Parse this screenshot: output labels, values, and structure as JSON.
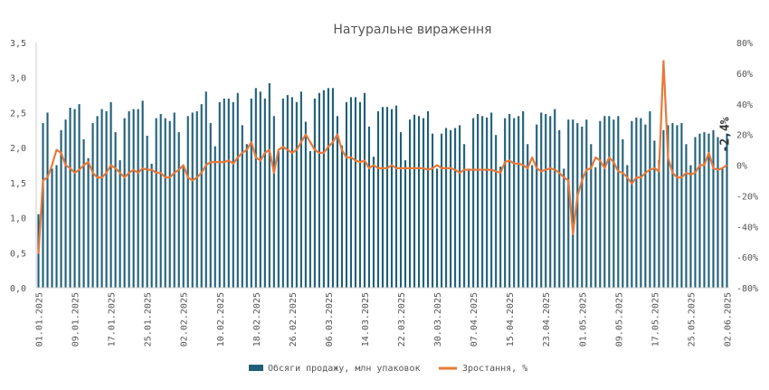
{
  "chart_data": {
    "type": "bar",
    "title": "Натуральне  вираження",
    "y_left": {
      "lim": [
        0,
        3.5
      ],
      "ticks": [
        0.0,
        0.5,
        1.0,
        1.5,
        2.0,
        2.5,
        3.0,
        3.5
      ],
      "tick_labels": [
        "0,0",
        "0,5",
        "1,0",
        "1,5",
        "2,0",
        "2,5",
        "3,0",
        "3,5"
      ]
    },
    "y_right": {
      "lim": [
        -80,
        80
      ],
      "ticks": [
        -80,
        -60,
        -40,
        -20,
        0,
        20,
        40,
        60,
        80
      ],
      "tick_labels": [
        "-80%",
        "-60%",
        "-40%",
        "-20%",
        "0%",
        "20%",
        "40%",
        "60%",
        "80%"
      ]
    },
    "x_tick_labels": [
      "01.01.2025",
      "09.01.2025",
      "17.01.2025",
      "25.01.2025",
      "02.02.2025",
      "10.02.2025",
      "18.02.2025",
      "26.02.2025",
      "06.03.2025",
      "14.03.2025",
      "22.03.2025",
      "30.03.2025",
      "07.04.2025",
      "15.04.2025",
      "23.04.2025",
      "01.05.2025",
      "09.05.2025",
      "17.05.2025",
      "25.05.2025",
      "02.06.2025"
    ],
    "grid": false,
    "legend_position": "bottom",
    "colors": {
      "bars": "#1f5f7a",
      "line": "#e8793a",
      "axis": "#cccccc",
      "text": "#555555"
    },
    "series": [
      {
        "name": "Обсяги продажу, млн упаковок",
        "axis": "left",
        "kind": "bar",
        "values": [
          1.05,
          2.35,
          2.5,
          1.7,
          1.75,
          2.25,
          2.4,
          2.57,
          2.55,
          2.62,
          2.12,
          1.85,
          2.35,
          2.45,
          2.55,
          2.52,
          2.65,
          2.22,
          1.82,
          2.42,
          2.52,
          2.55,
          2.55,
          2.67,
          2.17,
          1.77,
          2.42,
          2.48,
          2.42,
          2.38,
          2.5,
          2.22,
          1.75,
          2.45,
          2.5,
          2.52,
          2.62,
          2.8,
          2.35,
          2.02,
          2.65,
          2.7,
          2.7,
          2.65,
          2.78,
          2.32,
          2.05,
          2.7,
          2.85,
          2.8,
          2.7,
          2.92,
          2.45,
          1.95,
          2.7,
          2.75,
          2.72,
          2.65,
          2.8,
          2.37,
          1.95,
          2.7,
          2.78,
          2.82,
          2.85,
          2.85,
          2.45,
          2.03,
          2.65,
          2.72,
          2.72,
          2.65,
          2.78,
          2.3,
          1.87,
          2.52,
          2.58,
          2.58,
          2.55,
          2.6,
          2.22,
          1.82,
          2.4,
          2.47,
          2.45,
          2.42,
          2.52,
          2.2,
          1.7,
          2.2,
          2.28,
          2.25,
          2.28,
          2.32,
          2.05,
          1.7,
          2.42,
          2.48,
          2.45,
          2.43,
          2.5,
          2.18,
          1.73,
          2.42,
          2.48,
          2.42,
          2.45,
          2.52,
          2.05,
          1.75,
          2.33,
          2.5,
          2.48,
          2.45,
          2.55,
          2.25,
          1.7,
          2.4,
          2.4,
          2.35,
          2.3,
          2.4,
          2.05,
          1.72,
          2.38,
          2.45,
          2.45,
          2.4,
          2.45,
          2.12,
          1.75,
          2.38,
          2.43,
          2.42,
          2.33,
          2.52,
          2.1,
          1.82,
          2.25,
          2.32,
          2.35,
          2.32,
          2.35,
          2.05,
          1.75,
          2.15,
          2.2,
          2.22,
          2.2,
          2.25,
          2.15,
          1.72,
          2.2
        ]
      },
      {
        "name": "Зростання, %",
        "axis": "right",
        "kind": "line",
        "values": [
          -58,
          -10,
          -8,
          0,
          10,
          8,
          0,
          -2,
          -5,
          -3,
          0,
          2,
          -5,
          -8,
          -8,
          -5,
          0,
          -2,
          -5,
          -8,
          -5,
          -3,
          -5,
          -2,
          -3,
          -3,
          -5,
          -5,
          -8,
          -8,
          -5,
          -3,
          0,
          -8,
          -10,
          -8,
          -5,
          0,
          2,
          2,
          2,
          2,
          3,
          1,
          5,
          8,
          10,
          15,
          5,
          3,
          8,
          10,
          -5,
          10,
          12,
          10,
          8,
          10,
          15,
          20,
          15,
          10,
          8,
          8,
          12,
          15,
          20,
          10,
          5,
          5,
          3,
          2,
          3,
          -2,
          0,
          -2,
          -2,
          -2,
          0,
          -2,
          -2,
          -2,
          -2,
          -2,
          -2,
          -2,
          -3,
          -2,
          0,
          -2,
          -2,
          -2,
          -3,
          -5,
          -3,
          -3,
          -3,
          -3,
          -3,
          -3,
          -3,
          -4,
          -5,
          2,
          3,
          1,
          1,
          0,
          -2,
          5,
          -2,
          -4,
          -3,
          -2,
          -3,
          -5,
          -8,
          -10,
          -45,
          -20,
          -10,
          -3,
          -2,
          5,
          3,
          -2,
          5,
          2,
          -4,
          -5,
          -8,
          -12,
          -8,
          -8,
          -5,
          -3,
          -2,
          -4,
          68,
          5,
          -5,
          -8,
          -8,
          -5,
          -6,
          -5,
          0,
          0,
          8,
          -2,
          -3,
          -2,
          0
        ]
      }
    ],
    "annotations": [
      {
        "text": "-2,4%"
      }
    ]
  }
}
